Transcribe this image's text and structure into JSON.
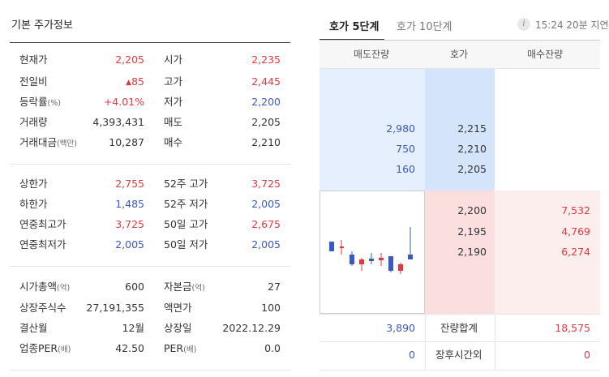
{
  "left": {
    "title": "기본 주가정보",
    "group1": [
      {
        "l_label": "현재가",
        "l_sub": "",
        "l_value": "2,205",
        "l_arrow": "",
        "r_label": "시가",
        "r_sub": "",
        "r_value": "2,235"
      },
      {
        "l_label": "전일비",
        "l_sub": "",
        "l_value": "85",
        "l_arrow": "▲",
        "r_label": "고가",
        "r_sub": "",
        "r_value": "2,445"
      },
      {
        "l_label": "등락률",
        "l_sub": "(%)",
        "l_value": "+4.01%",
        "l_arrow": "",
        "r_label": "저가",
        "r_sub": "",
        "r_value": "2,200"
      },
      {
        "l_label": "거래량",
        "l_sub": "",
        "l_value": "4,393,431",
        "l_arrow": "",
        "r_label": "매도",
        "r_sub": "",
        "r_value": "2,205"
      },
      {
        "l_label": "거래대금",
        "l_sub": "(백만)",
        "l_value": "10,287",
        "l_arrow": "",
        "r_label": "매수",
        "r_sub": "",
        "r_value": "2,210"
      }
    ],
    "group2": [
      {
        "l_label": "상한가",
        "l_value": "2,755",
        "r_label": "52주 고가",
        "r_value": "3,725"
      },
      {
        "l_label": "하한가",
        "l_value": "1,485",
        "r_label": "52주 저가",
        "r_value": "2,005"
      },
      {
        "l_label": "연중최고가",
        "l_value": "3,725",
        "r_label": "50일 고가",
        "r_value": "2,675"
      },
      {
        "l_label": "연중최저가",
        "l_value": "2,005",
        "r_label": "50일 저가",
        "r_value": "2,005"
      }
    ],
    "group3": [
      {
        "l_label": "시가총액",
        "l_sub": "(억)",
        "l_value": "600",
        "r_label": "자본금",
        "r_sub": "(억)",
        "r_value": "27"
      },
      {
        "l_label": "상장주식수",
        "l_sub": "",
        "l_value": "27,191,355",
        "r_label": "액면가",
        "r_sub": "",
        "r_value": "100"
      },
      {
        "l_label": "결산월",
        "l_sub": "",
        "l_value": "12월",
        "r_label": "상장일",
        "r_sub": "",
        "r_value": "2022.12.29"
      },
      {
        "l_label": "업종PER",
        "l_sub": "(배)",
        "l_value": "42.50",
        "r_label": "PER",
        "r_sub": "(배)",
        "r_value": "0.0"
      }
    ]
  },
  "right": {
    "tabs": [
      "호가 5단계",
      "호가 10단계"
    ],
    "info_icon": "i",
    "time_note": "15:24 20분 지연",
    "headers": [
      "매도잔량",
      "호가",
      "매수잔량"
    ],
    "ask_rows": [
      {
        "qty": "2,980",
        "price": "2,215"
      },
      {
        "qty": "750",
        "price": "2,210"
      },
      {
        "qty": "160",
        "price": "2,205"
      }
    ],
    "bid_rows": [
      {
        "price": "2,200",
        "qty": "7,532"
      },
      {
        "price": "2,195",
        "qty": "4,769"
      },
      {
        "price": "2,190",
        "qty": "6,274"
      }
    ],
    "total_row": {
      "ask": "3,890",
      "label": "잔량합계",
      "bid": "18,575"
    },
    "after_row": {
      "ask": "0",
      "label": "장후시간외",
      "bid": "0"
    }
  },
  "colors": {
    "up": "#e5373d",
    "down": "#3a58c9",
    "ask_bg": "#e5effd",
    "ask_price_bg": "#d4e5fb",
    "bid_bg": "#fdeeee",
    "bid_price_bg": "#fbdede"
  }
}
